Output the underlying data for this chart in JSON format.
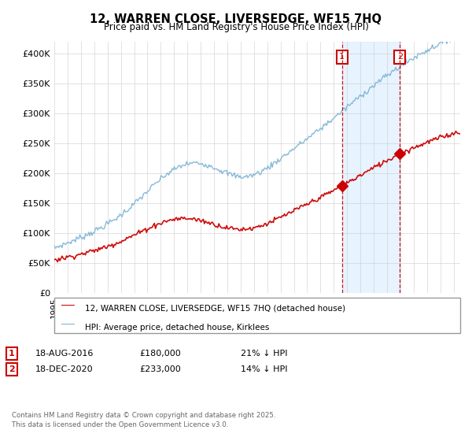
{
  "title": "12, WARREN CLOSE, LIVERSEDGE, WF15 7HQ",
  "subtitle": "Price paid vs. HM Land Registry's House Price Index (HPI)",
  "ylim": [
    0,
    420000
  ],
  "yticks": [
    0,
    50000,
    100000,
    150000,
    200000,
    250000,
    300000,
    350000,
    400000
  ],
  "ytick_labels": [
    "£0",
    "£50K",
    "£100K",
    "£150K",
    "£200K",
    "£250K",
    "£300K",
    "£350K",
    "£400K"
  ],
  "hpi_color": "#7ab3d4",
  "price_color": "#cc0000",
  "dashed_color": "#cc0000",
  "shading_color": "#ddeeff",
  "sale1_year": 2016.62,
  "sale1_price": 180000,
  "sale1_pct": "21%",
  "sale2_year": 2020.96,
  "sale2_price": 233000,
  "sale2_pct": "14%",
  "start_year": 1995.0,
  "end_year": 2025.5,
  "legend_line1": "12, WARREN CLOSE, LIVERSEDGE, WF15 7HQ (detached house)",
  "legend_line2": "HPI: Average price, detached house, Kirklees",
  "footnote": "Contains HM Land Registry data © Crown copyright and database right 2025.\nThis data is licensed under the Open Government Licence v3.0.",
  "background_color": "#ffffff",
  "grid_color": "#cccccc"
}
